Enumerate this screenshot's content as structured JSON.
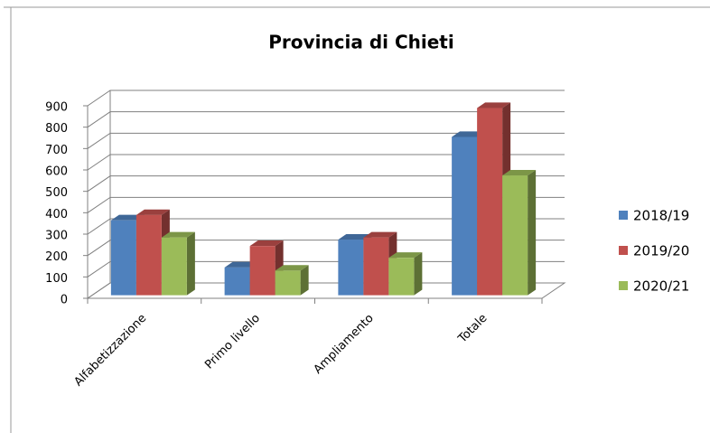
{
  "chart_data": {
    "type": "bar3d",
    "title": "Provincia di Chieti",
    "categories": [
      "Alfabetizzazione",
      "Primo livello",
      "Ampliamento",
      "Totale"
    ],
    "series": [
      {
        "name": "2018/19",
        "color": "#4f81bd",
        "values": [
          350,
          130,
          260,
          740
        ]
      },
      {
        "name": "2019/20",
        "color": "#c0504d",
        "values": [
          375,
          230,
          270,
          875
        ]
      },
      {
        "name": "2020/21",
        "color": "#9bbb59",
        "values": [
          270,
          115,
          175,
          560
        ]
      }
    ],
    "ylim": [
      0,
      900
    ],
    "yticks": [
      0,
      100,
      200,
      300,
      400,
      500,
      600,
      700,
      800,
      900
    ],
    "grid": true,
    "legend": "right"
  }
}
